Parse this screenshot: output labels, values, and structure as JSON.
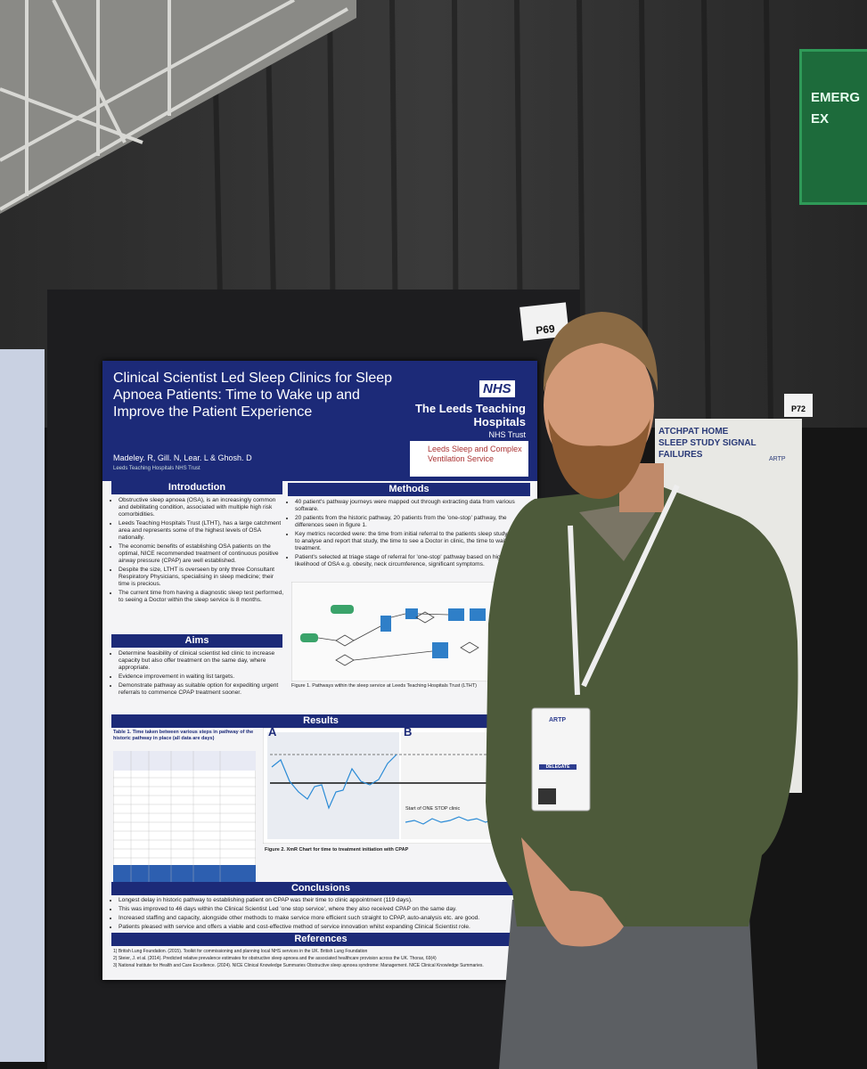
{
  "poster": {
    "board_number": "P69",
    "title": "Clinical Scientist Led Sleep Clinics for Sleep Apnoea Patients: Time to Wake up and Improve the Patient Experience",
    "authors": "Madeley. R, Gill. N, Lear. L & Ghosh. D",
    "affiliation": "Leeds Teaching Hospitals NHS Trust",
    "nhs_logo": "NHS",
    "trust": "The Leeds Teaching Hospitals",
    "trust_sub": "NHS Trust",
    "service": "Leeds Sleep and Complex Ventilation Service",
    "introduction": {
      "heading": "Introduction",
      "items": [
        "Obstructive sleep apnoea (OSA), is an increasingly common and debilitating condition, associated with multiple high risk comorbidities.",
        "Leeds Teaching Hospitals Trust (LTHT), has a large catchment area and represents some of the highest levels of OSA nationally.",
        "The economic benefits of establishing OSA patients on the optimal, NICE recommended treatment of continuous positive airway pressure (CPAP) are well established.",
        "Despite the size, LTHT is overseen by only three Consultant Respiratory Physicians, specialising in sleep medicine; their time is precious.",
        "The current time from having a diagnostic sleep test performed, to seeing a Doctor within the sleep service is 8 months."
      ]
    },
    "aims": {
      "heading": "Aims",
      "items": [
        "Determine feasibility of clinical scientist led clinic to increase capacity but also offer treatment on the same day, where appropriate.",
        "Evidence improvement in waiting list targets.",
        "Demonstrate pathway as suitable option for expediting urgent referrals to commence CPAP treatment sooner."
      ]
    },
    "methods": {
      "heading": "Methods",
      "items": [
        "40 patient's pathway journeys were mapped out through extracting data from various software.",
        "20 patients from the historic pathway, 20 patients from the 'one-stop' pathway, the differences seen in figure 1.",
        "Key metrics recorded were: the time from initial referral to the patients sleep study, the time to analyse and report that study, the time to see a Doctor in clinic, the time to wait for treatment.",
        "Patient's selected at triage stage of referral for 'one-stop' pathway based on higher risk likelihood of OSA e.g. obesity, neck circumference, significant symptoms."
      ],
      "figure_caption": "Figure 1. Pathways within the sleep service at Leeds Teaching Hospitals Trust (LTHT)"
    },
    "results": {
      "heading": "Results",
      "table_caption": "Table 1. Time taken between various steps in pathway of the historic pathway in place (all data are days)",
      "panel_a": "A",
      "panel_b": "B",
      "annotation": "Start of ONE STOP clinic",
      "figure_caption": "Figure 2. XmR Chart for time to treatment initiation with CPAP"
    },
    "conclusions": {
      "heading": "Conclusions",
      "items": [
        "Longest delay in historic pathway to establishing patient on CPAP was their time to clinic appointment (119 days).",
        "This was improved to 46 days within the Clinical Scientist Led 'one stop service', where they also received CPAP on the same day.",
        "Increased staffing and capacity, alongside other methods to make service more efficient such straight to CPAP, auto-analysis etc. are good.",
        "Patients pleased with service and offers a viable and cost-effective method of service innovation whilst expanding Clinical Scientist role."
      ]
    },
    "references": {
      "heading": "References",
      "items": [
        "1) British Lung Foundation. (2015). Toolkit for commissioning and planning local NHS services in the UK. British Lung Foundation",
        "2) Steier, J. et al. (2014). Predicted relative prevalence estimates for obstructive sleep apnoea and the associated healthcare provision across the UK. Thorax, 69(4)",
        "3) National Institute for Health and Care Excellence. (2024). NICE Clinical Knowledge Summaries Obstructive sleep apnoea syndrome: Management. NICE Clinical Knowledge Summaries."
      ]
    }
  },
  "neighbor_poster": {
    "board_number": "P72",
    "title": "ATCHPAT HOME SLEEP STUDY SIGNAL FAILURES",
    "logo": "ARTP"
  },
  "exit_sign": "EMERG EX",
  "badge": {
    "logo": "ARTP",
    "role": "DELEGATE"
  }
}
